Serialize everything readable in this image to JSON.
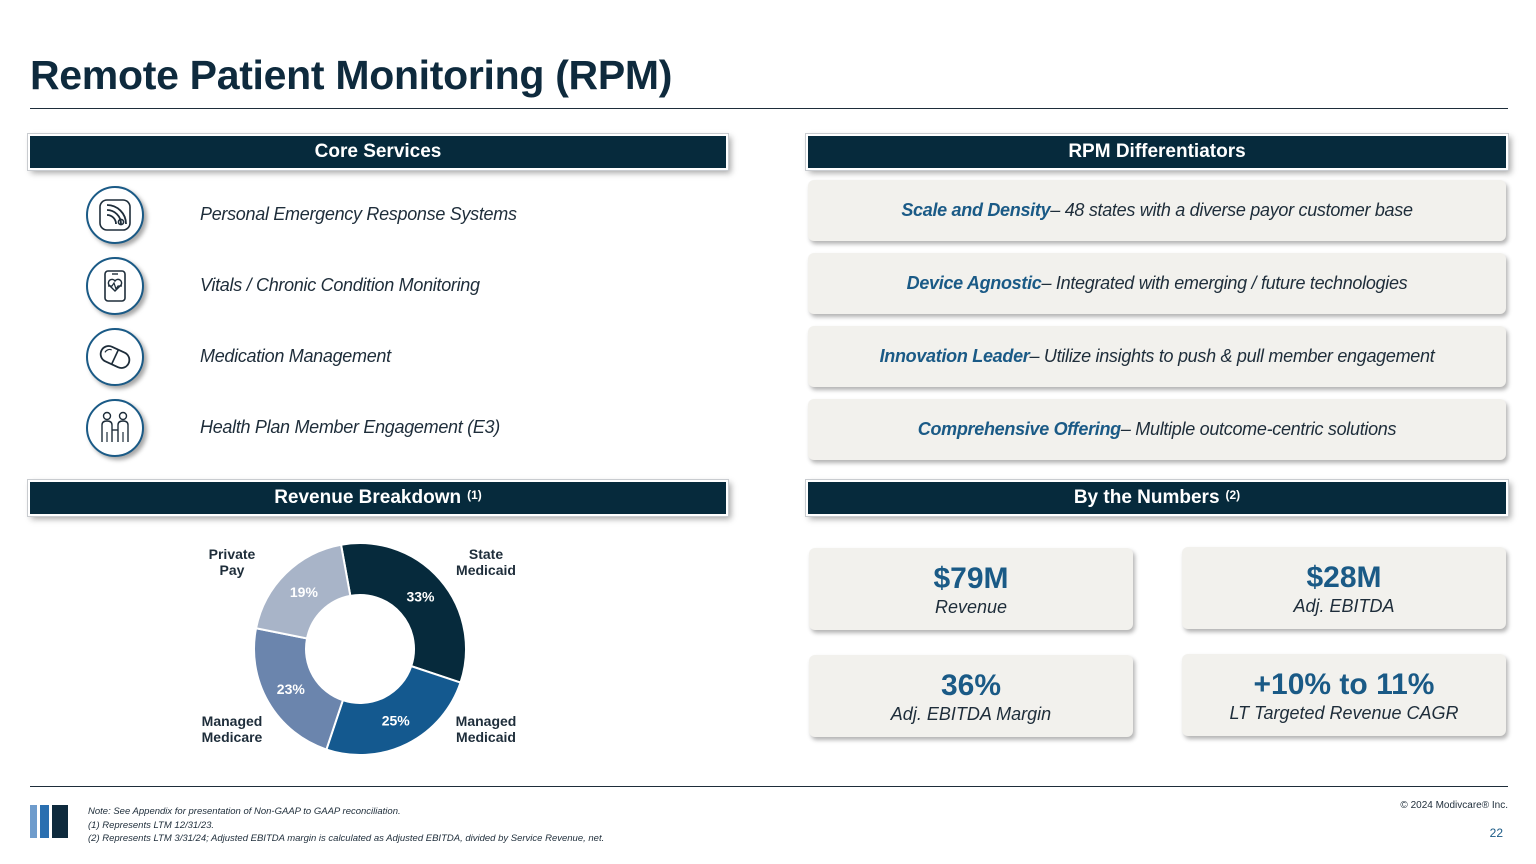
{
  "title": "Remote Patient Monitoring (RPM)",
  "sections": {
    "core_services": "Core Services",
    "differentiators": "RPM Differentiators",
    "revenue": "Revenue Breakdown",
    "revenue_note": "(1)",
    "numbers": "By the Numbers",
    "numbers_note": "(2)"
  },
  "services": [
    {
      "icon": "wifi-signal-icon",
      "label": "Personal Emergency Response Systems"
    },
    {
      "icon": "heart-monitor-phone-icon",
      "label": "Vitals / Chronic Condition Monitoring"
    },
    {
      "icon": "pill-capsule-icon",
      "label": "Medication Management"
    },
    {
      "icon": "people-icon",
      "label": "Health Plan Member Engagement (E3)"
    }
  ],
  "differentiators": [
    {
      "highlight": "Scale and Density",
      "text": " – 48 states with a diverse payor customer base"
    },
    {
      "highlight": "Device Agnostic",
      "text": " – Integrated with emerging / future technologies"
    },
    {
      "highlight": "Innovation Leader",
      "text": " – Utilize insights to push & pull member engagement"
    },
    {
      "highlight": "Comprehensive Offering",
      "text": " – Multiple outcome-centric solutions"
    }
  ],
  "numbers": [
    {
      "value": "$79M",
      "label": "Revenue"
    },
    {
      "value": "$28M",
      "label": "Adj. EBITDA"
    },
    {
      "value": "36%",
      "label": "Adj. EBITDA Margin"
    },
    {
      "value": "+10% to 11%",
      "label": "LT Targeted Revenue CAGR"
    }
  ],
  "chart_data": {
    "type": "pie",
    "donut": true,
    "title": "Revenue Breakdown",
    "categories": [
      "State Medicaid",
      "Managed Medicaid",
      "Managed Medicare",
      "Private Pay"
    ],
    "category_lines": [
      [
        "State",
        "Medicaid"
      ],
      [
        "Managed",
        "Medicaid"
      ],
      [
        "Managed",
        "Medicare"
      ],
      [
        "Private",
        "Pay"
      ]
    ],
    "values": [
      33,
      25,
      23,
      19
    ],
    "value_labels": [
      "33%",
      "25%",
      "23%",
      "19%"
    ],
    "colors": [
      "#062a3c",
      "#14598f",
      "#6b85ad",
      "#a8b4c8"
    ]
  },
  "footer": {
    "notes": [
      "Note: See Appendix for presentation of Non-GAAP to GAAP reconciliation.",
      "(1) Represents LTM 12/31/23.",
      "(2) Represents LTM 3/31/24; Adjusted EBITDA margin is calculated as Adjusted EBITDA, divided by Service Revenue, net."
    ],
    "copyright": "© 2024 Modivcare® Inc.",
    "page": "22"
  }
}
